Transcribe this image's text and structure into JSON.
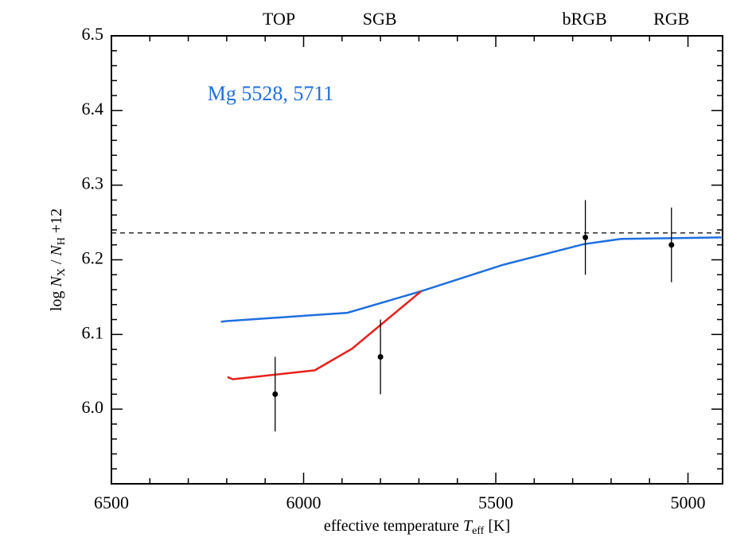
{
  "chart_data": {
    "type": "line",
    "x_label": [
      "effective temperature ",
      "T",
      "eff",
      "  [K]"
    ],
    "y_label": [
      "log ",
      "N",
      "X",
      " / ",
      "N",
      "H",
      " +12"
    ],
    "annotation": {
      "text": "Mg 5528, 5711",
      "color": "#1f6fe0",
      "x": 6250,
      "y": 6.42
    },
    "reference_line": {
      "y": 6.236,
      "color": "#000000",
      "dash": "6,5"
    },
    "top_labels": [
      {
        "text": "TOP",
        "x": 6064
      },
      {
        "text": "SGB",
        "x": 5802
      },
      {
        "text": "bRGB",
        "x": 5269
      },
      {
        "text": "RGB",
        "x": 5043
      }
    ],
    "series": [
      {
        "color": "#1f6fe0",
        "x": [
          6215,
          6200,
          5886,
          5694,
          5483,
          5271,
          5174,
          4913
        ],
        "values": [
          6.117,
          6.118,
          6.129,
          6.158,
          6.193,
          6.221,
          6.228,
          6.23
        ]
      },
      {
        "color": "#e8201a",
        "x": [
          6198,
          6184,
          5971,
          5874,
          5694
        ],
        "values": [
          6.043,
          6.04,
          6.052,
          6.081,
          6.158
        ]
      }
    ],
    "points": {
      "color": "#000000",
      "x": [
        6074,
        5800,
        5267,
        5043
      ],
      "values": [
        6.02,
        6.07,
        6.23,
        6.22
      ],
      "errors": [
        0.05,
        0.05,
        0.05,
        0.05
      ]
    },
    "xlim": [
      6500,
      4910
    ],
    "ylim": [
      5.9,
      6.5
    ],
    "xticks": [
      6500,
      6000,
      5500,
      5000
    ],
    "yticks": [
      6.0,
      6.1,
      6.2,
      6.3,
      6.4,
      6.5
    ],
    "xminorticks": [
      6400,
      6300,
      6200,
      6100,
      5900,
      5800,
      5700,
      5600,
      5400,
      5300,
      5200,
      5100,
      4900
    ],
    "yminorticks": [
      5.92,
      5.94,
      5.96,
      5.98,
      6.02,
      6.04,
      6.06,
      6.08,
      6.12,
      6.14,
      6.16,
      6.18,
      6.22,
      6.24,
      6.26,
      6.28,
      6.32,
      6.34,
      6.36,
      6.38,
      6.42,
      6.44,
      6.46,
      6.48
    ]
  }
}
